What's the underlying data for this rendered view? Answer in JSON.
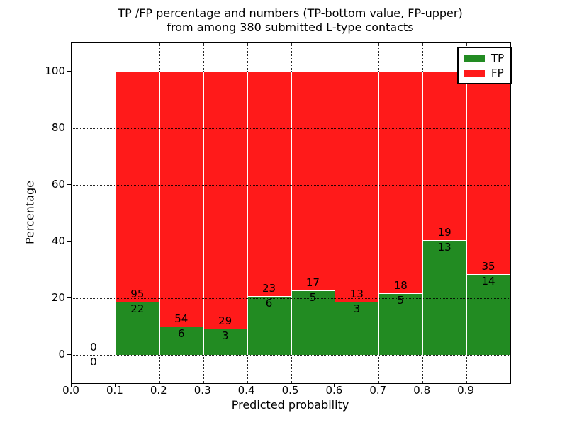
{
  "chart_data": {
    "type": "bar",
    "stacked": true,
    "normalized_to_percent": true,
    "title_line1": "TP /FP percentage and numbers (TP-bottom value, FP-upper)",
    "title_line2": "from among 380 submitted L-type contacts",
    "xlabel": "Predicted probability",
    "ylabel": "Percentage",
    "xlim": [
      0.0,
      1.0
    ],
    "ylim": [
      -10,
      110
    ],
    "xtick_labels": [
      "0.0",
      "0.1",
      "0.2",
      "0.3",
      "0.4",
      "0.5",
      "0.6",
      "0.7",
      "0.8",
      "0.9"
    ],
    "ytick_values": [
      0,
      20,
      40,
      60,
      80,
      100
    ],
    "grid_style": "dotted",
    "legend": {
      "position": "upper-right",
      "entries": [
        {
          "label": "TP",
          "color": "#228b22"
        },
        {
          "label": "FP",
          "color": "#ff1a1a"
        }
      ]
    },
    "colors": {
      "tp": "#228b22",
      "fp": "#ff1a1a",
      "grid": "#000000",
      "background": "#ffffff"
    },
    "bins": [
      {
        "x_start": 0.0,
        "x_end": 0.1,
        "tp": 0,
        "fp": 0
      },
      {
        "x_start": 0.1,
        "x_end": 0.2,
        "tp": 22,
        "fp": 95
      },
      {
        "x_start": 0.2,
        "x_end": 0.3,
        "tp": 6,
        "fp": 54
      },
      {
        "x_start": 0.3,
        "x_end": 0.4,
        "tp": 3,
        "fp": 29
      },
      {
        "x_start": 0.4,
        "x_end": 0.5,
        "tp": 6,
        "fp": 23
      },
      {
        "x_start": 0.5,
        "x_end": 0.6,
        "tp": 5,
        "fp": 17
      },
      {
        "x_start": 0.6,
        "x_end": 0.7,
        "tp": 3,
        "fp": 13
      },
      {
        "x_start": 0.7,
        "x_end": 0.8,
        "tp": 5,
        "fp": 18
      },
      {
        "x_start": 0.8,
        "x_end": 0.9,
        "tp": 13,
        "fp": 19
      },
      {
        "x_start": 0.9,
        "x_end": 1.0,
        "tp": 14,
        "fp": 35
      }
    ]
  }
}
